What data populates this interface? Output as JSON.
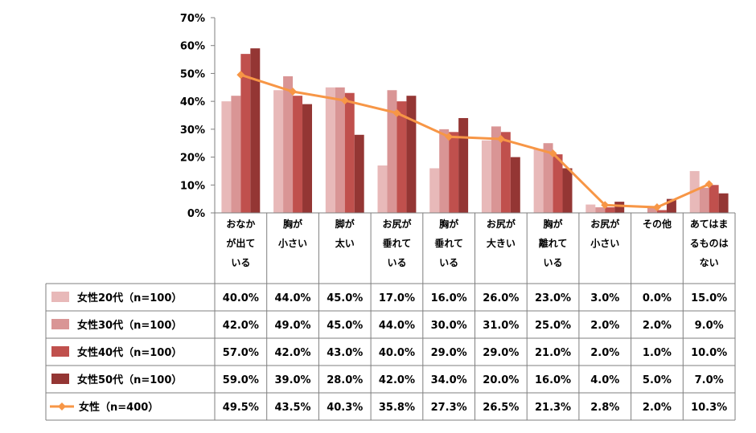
{
  "chart_data": {
    "type": "bar",
    "categories": [
      [
        "おなか",
        "が出て",
        "いる"
      ],
      [
        "胸が",
        "小さい"
      ],
      [
        "脚が",
        "太い"
      ],
      [
        "お尻が",
        "垂れて",
        "いる"
      ],
      [
        "胸が",
        "垂れて",
        "いる"
      ],
      [
        "お尻が",
        "大きい"
      ],
      [
        "胸が",
        "離れて",
        "いる"
      ],
      [
        "お尻が",
        "小さい"
      ],
      [
        "その他"
      ],
      [
        "あてはま",
        "るものは",
        "ない"
      ]
    ],
    "y_ticks": [
      "0%",
      "10%",
      "20%",
      "30%",
      "40%",
      "50%",
      "60%",
      "70%"
    ],
    "ylim": [
      0,
      70
    ],
    "grid": false,
    "series": [
      {
        "name": "女性20代（n=100）",
        "kind": "bar",
        "color": "#e8b9b9",
        "values": [
          40.0,
          44.0,
          45.0,
          17.0,
          16.0,
          26.0,
          23.0,
          3.0,
          0.0,
          15.0
        ],
        "labels": [
          "40.0%",
          "44.0%",
          "45.0%",
          "17.0%",
          "16.0%",
          "26.0%",
          "23.0%",
          "3.0%",
          "0.0%",
          "15.0%"
        ]
      },
      {
        "name": "女性30代（n=100）",
        "kind": "bar",
        "color": "#d99595",
        "values": [
          42.0,
          49.0,
          45.0,
          44.0,
          30.0,
          31.0,
          25.0,
          2.0,
          2.0,
          9.0
        ],
        "labels": [
          "42.0%",
          "49.0%",
          "45.0%",
          "44.0%",
          "30.0%",
          "31.0%",
          "25.0%",
          "2.0%",
          "2.0%",
          "9.0%"
        ]
      },
      {
        "name": "女性40代（n=100）",
        "kind": "bar",
        "color": "#c0504d",
        "values": [
          57.0,
          42.0,
          43.0,
          40.0,
          29.0,
          29.0,
          21.0,
          2.0,
          1.0,
          10.0
        ],
        "labels": [
          "57.0%",
          "42.0%",
          "43.0%",
          "40.0%",
          "29.0%",
          "29.0%",
          "21.0%",
          "2.0%",
          "1.0%",
          "10.0%"
        ]
      },
      {
        "name": "女性50代（n=100）",
        "kind": "bar",
        "color": "#943634",
        "values": [
          59.0,
          39.0,
          28.0,
          42.0,
          34.0,
          20.0,
          16.0,
          4.0,
          5.0,
          7.0
        ],
        "labels": [
          "59.0%",
          "39.0%",
          "28.0%",
          "42.0%",
          "34.0%",
          "20.0%",
          "16.0%",
          "4.0%",
          "5.0%",
          "7.0%"
        ]
      },
      {
        "name": "女性（n=400）",
        "kind": "line",
        "color": "#f79646",
        "values": [
          49.5,
          43.5,
          40.3,
          35.8,
          27.3,
          26.5,
          21.3,
          2.8,
          2.0,
          10.3
        ],
        "labels": [
          "49.5%",
          "43.5%",
          "40.3%",
          "35.8%",
          "27.3%",
          "26.5%",
          "21.3%",
          "2.8%",
          "2.0%",
          "10.3%"
        ]
      }
    ]
  }
}
